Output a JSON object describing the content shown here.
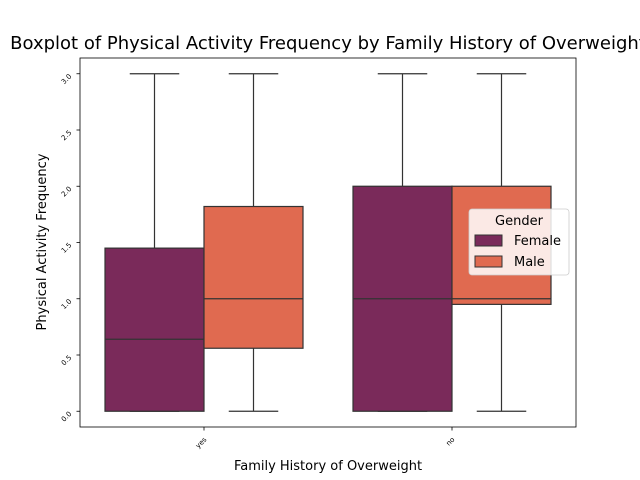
{
  "chart_data": {
    "type": "boxplot",
    "title": "Boxplot of Physical Activity Frequency by Family History of Overweight",
    "xlabel": "Family History of Overweight",
    "ylabel": "Physical Activity Frequency",
    "categories": [
      "yes",
      "no"
    ],
    "ylim": [
      -0.14,
      3.14
    ],
    "yticks": [
      "0.0",
      "0.5",
      "1.0",
      "1.5",
      "2.0",
      "2.5",
      "3.0"
    ],
    "legend": {
      "title": "Gender",
      "placement": "center-right"
    },
    "series": [
      {
        "name": "Female",
        "color": "#7a2a5a",
        "boxes": [
          {
            "category": "yes",
            "whisker_low": 0.0,
            "q1": 0.0,
            "median": 0.64,
            "q3": 1.45,
            "whisker_high": 3.0
          },
          {
            "category": "no",
            "whisker_low": 0.0,
            "q1": 0.0,
            "median": 1.0,
            "q3": 2.0,
            "whisker_high": 3.0
          }
        ]
      },
      {
        "name": "Male",
        "color": "#e06a50",
        "boxes": [
          {
            "category": "yes",
            "whisker_low": 0.0,
            "q1": 0.56,
            "median": 1.0,
            "q3": 1.82,
            "whisker_high": 3.0
          },
          {
            "category": "no",
            "whisker_low": 0.0,
            "q1": 0.95,
            "median": 1.0,
            "q3": 2.0,
            "whisker_high": 3.0
          }
        ]
      }
    ]
  }
}
